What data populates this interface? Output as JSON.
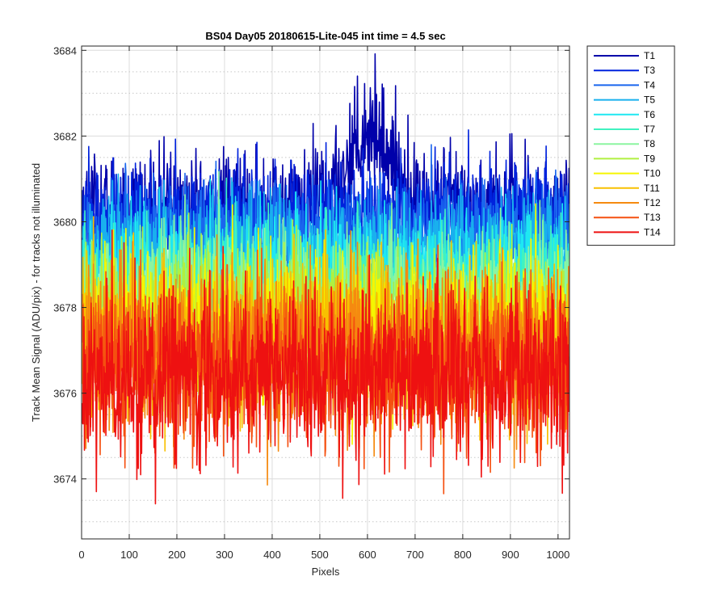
{
  "chart_data": {
    "type": "line",
    "title": "BS04 Day05 20180615-Lite-045 int time = 4.5 sec",
    "xlabel": "Pixels",
    "ylabel": "Track Mean Signal (ADU/pix) - for tracks not illuminated",
    "xlim": [
      0,
      1024
    ],
    "ylim": [
      3672.6,
      3684.1
    ],
    "xticks": [
      0,
      100,
      200,
      300,
      400,
      500,
      600,
      700,
      800,
      900,
      1000
    ],
    "yticks": [
      3674,
      3676,
      3678,
      3680,
      3682,
      3684
    ],
    "grid": true,
    "minor_grid": true,
    "legend_position": "outside-top-right",
    "series": [
      {
        "name": "T1",
        "color": "#0000aa",
        "mean": 3680.3,
        "noise": 0.65,
        "bump_center": 605,
        "bump_width": 45,
        "bump_height": 1.9
      },
      {
        "name": "T3",
        "color": "#0022dd",
        "mean": 3680.1,
        "noise": 0.65
      },
      {
        "name": "T4",
        "color": "#1a66ee",
        "mean": 3679.7,
        "noise": 0.65
      },
      {
        "name": "T5",
        "color": "#19b0ee",
        "mean": 3679.3,
        "noise": 0.65
      },
      {
        "name": "T6",
        "color": "#1ee8f2",
        "mean": 3678.9,
        "noise": 0.65
      },
      {
        "name": "T7",
        "color": "#40f2c0",
        "mean": 3678.5,
        "noise": 0.7
      },
      {
        "name": "T8",
        "color": "#8cf5a0",
        "mean": 3678.2,
        "noise": 0.75
      },
      {
        "name": "T9",
        "color": "#b0f040",
        "mean": 3677.9,
        "noise": 0.8
      },
      {
        "name": "T10",
        "color": "#f5f500",
        "mean": 3677.6,
        "noise": 0.8
      },
      {
        "name": "T11",
        "color": "#f8c000",
        "mean": 3677.3,
        "noise": 0.85
      },
      {
        "name": "T12",
        "color": "#f58a10",
        "mean": 3677.0,
        "noise": 0.9
      },
      {
        "name": "T13",
        "color": "#f55010",
        "mean": 3676.7,
        "noise": 0.95
      },
      {
        "name": "T14",
        "color": "#ee1111",
        "mean": 3676.5,
        "noise": 1.0
      }
    ]
  }
}
